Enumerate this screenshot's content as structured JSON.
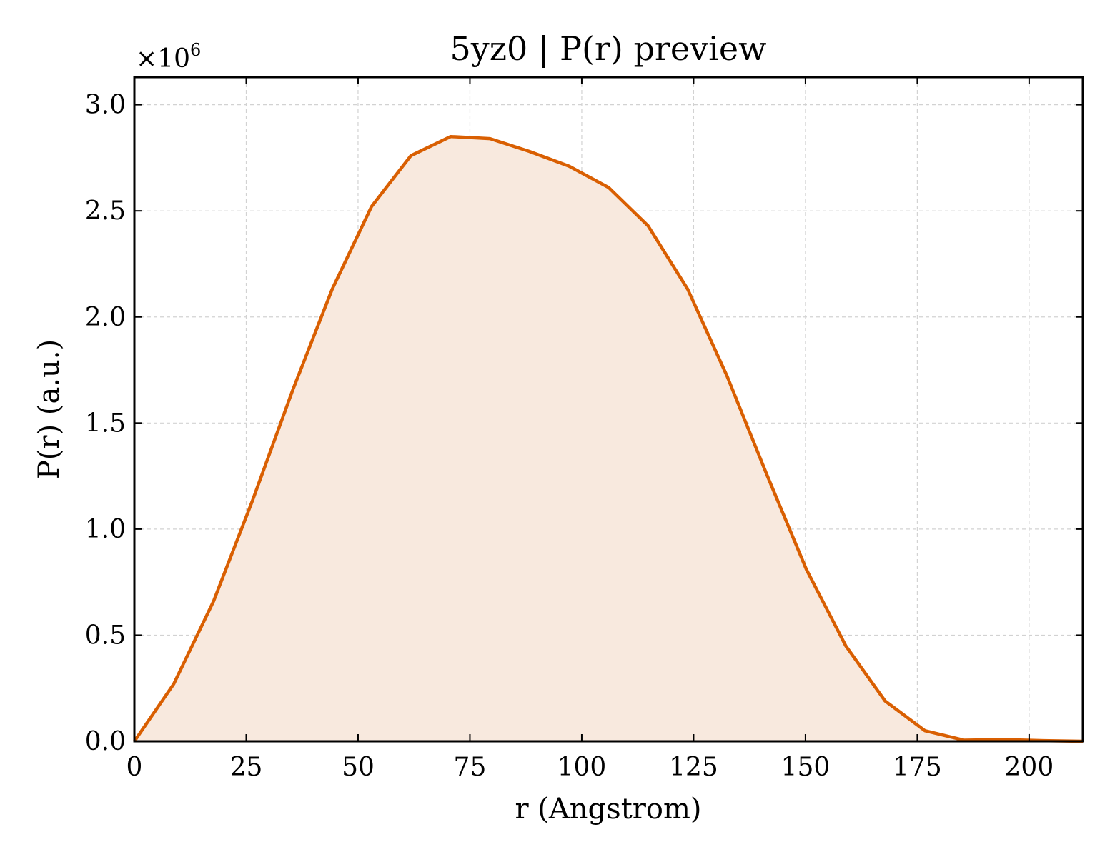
{
  "chart_data": {
    "type": "area",
    "title": "5yz0 | P(r) preview",
    "xlabel": "r (Angstrom)",
    "ylabel": "P(r) (a.u.)",
    "y_multiplier": {
      "prefix": "×10",
      "exponent": "6"
    },
    "xlim": [
      0,
      212
    ],
    "ylim": [
      0,
      3.13
    ],
    "x_ticks": [
      0,
      25,
      50,
      75,
      100,
      125,
      150,
      175,
      200
    ],
    "y_ticks": [
      0.0,
      0.5,
      1.0,
      1.5,
      2.0,
      2.5,
      3.0
    ],
    "x_tick_labels": [
      "0",
      "25",
      "50",
      "75",
      "100",
      "125",
      "150",
      "175",
      "200"
    ],
    "y_tick_labels": [
      "0.0",
      "0.5",
      "1.0",
      "1.5",
      "2.0",
      "2.5",
      "3.0"
    ],
    "grid": true,
    "line_color": "#d95f02",
    "fill_color": "#f8e9de",
    "series": [
      {
        "x": [
          0,
          8.8,
          17.7,
          26.5,
          35.3,
          44.2,
          53.0,
          61.8,
          70.7,
          79.5,
          88.3,
          97.2,
          106.0,
          114.8,
          123.7,
          132.5,
          141.3,
          150.2,
          159.0,
          167.8,
          176.7,
          185.5,
          194.3,
          203.2,
          212.0
        ],
        "y": [
          0.0,
          0.27,
          0.66,
          1.14,
          1.65,
          2.13,
          2.52,
          2.76,
          2.85,
          2.84,
          2.78,
          2.71,
          2.61,
          2.43,
          2.13,
          1.72,
          1.26,
          0.81,
          0.45,
          0.19,
          0.05,
          0.005,
          0.008,
          0.003,
          0.0
        ]
      }
    ]
  }
}
